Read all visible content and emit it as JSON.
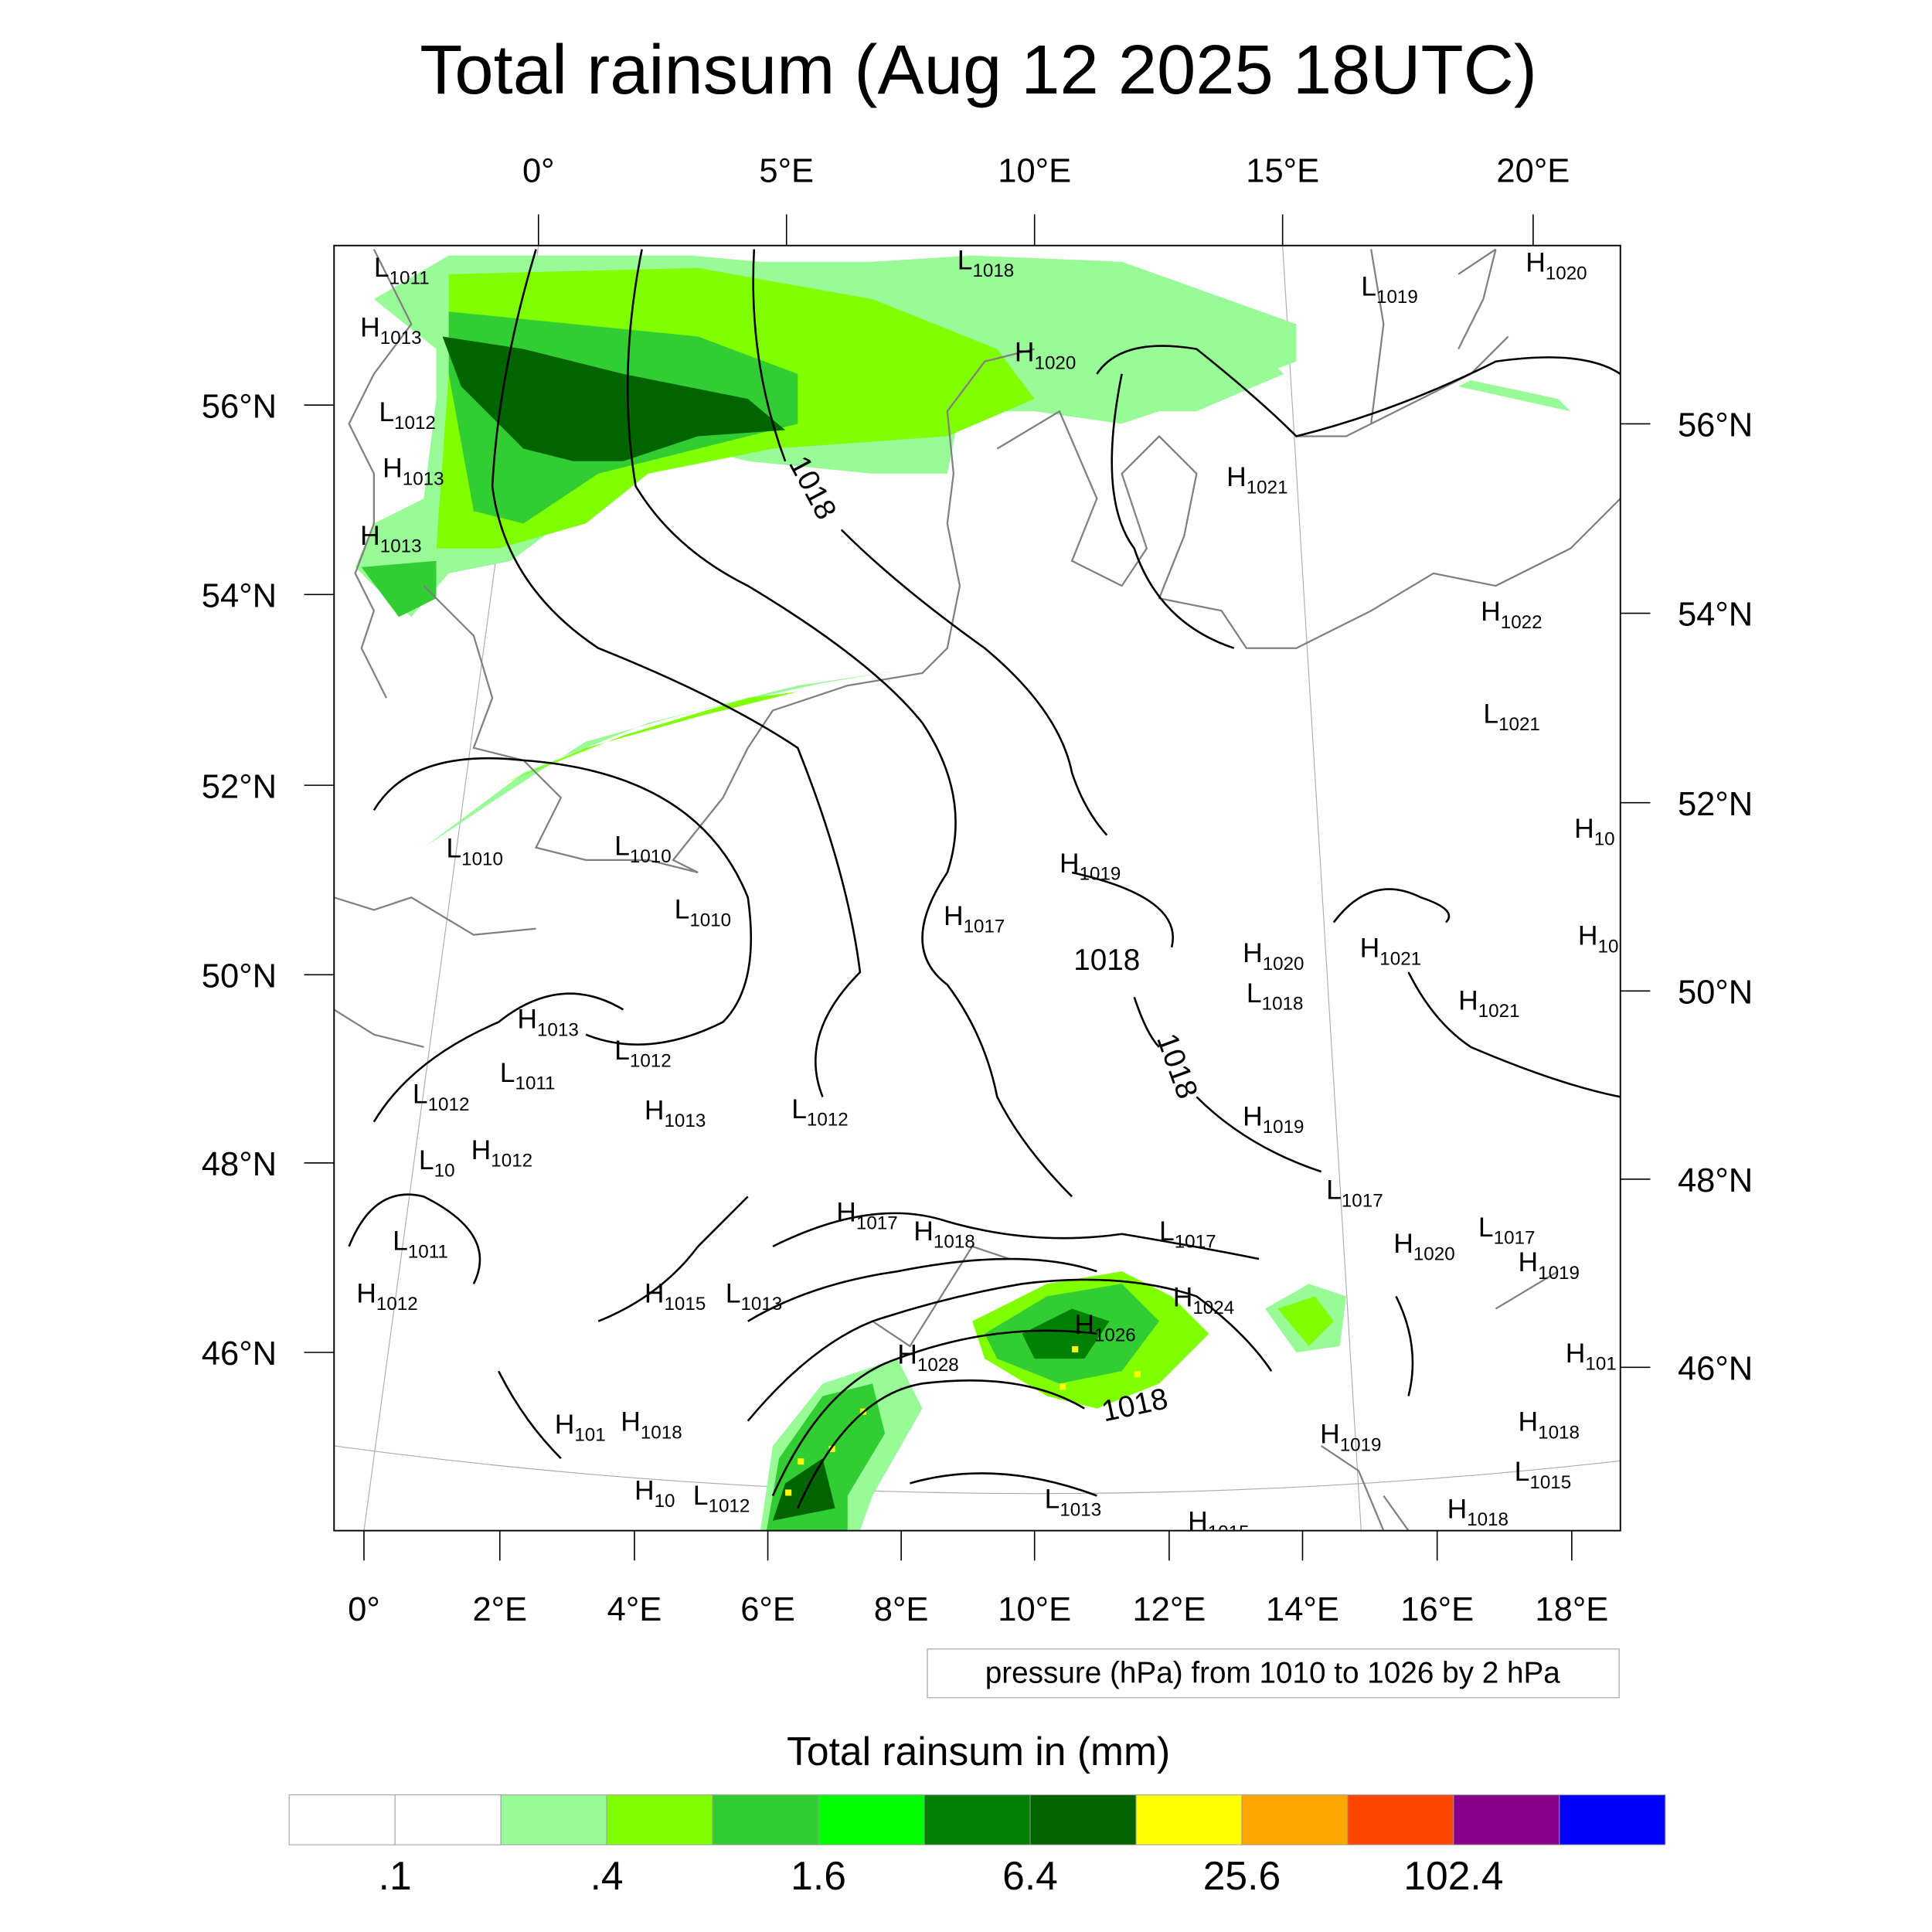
{
  "title": "Total rainsum (Aug 12 2025 18UTC)",
  "axes": {
    "top_lon_labels": [
      "0°",
      "5°E",
      "10°E",
      "15°E",
      "20°E"
    ],
    "bottom_lon_labels": [
      "0°",
      "2°E",
      "4°E",
      "6°E",
      "8°E",
      "10°E",
      "12°E",
      "14°E",
      "16°E",
      "18°E"
    ],
    "left_lat_labels": [
      "56°N",
      "54°N",
      "52°N",
      "50°N",
      "48°N",
      "46°N"
    ],
    "right_lat_labels": [
      "56°N",
      "54°N",
      "52°N",
      "50°N",
      "48°N",
      "46°N"
    ]
  },
  "contour_info": "pressure (hPa) from 1010 to 1026 by 2 hPa",
  "contour_line_labels": [
    "1018",
    "1018",
    "1018",
    "1018"
  ],
  "pressure_centers": [
    {
      "type": "L",
      "value": "1011"
    },
    {
      "type": "H",
      "value": "1013"
    },
    {
      "type": "L",
      "value": "1012"
    },
    {
      "type": "H",
      "value": "1013"
    },
    {
      "type": "H",
      "value": "1013"
    },
    {
      "type": "L",
      "value": "1018"
    },
    {
      "type": "H",
      "value": "1020"
    },
    {
      "type": "L",
      "value": "1019"
    },
    {
      "type": "H",
      "value": "1020"
    },
    {
      "type": "H",
      "value": "1021"
    },
    {
      "type": "H",
      "value": "1022"
    },
    {
      "type": "L",
      "value": "1021"
    },
    {
      "type": "H",
      "value": "10"
    },
    {
      "type": "H",
      "value": "10"
    },
    {
      "type": "L",
      "value": "1010"
    },
    {
      "type": "L",
      "value": "1010"
    },
    {
      "type": "L",
      "value": "1010"
    },
    {
      "type": "H",
      "value": "1019"
    },
    {
      "type": "H",
      "value": "1017"
    },
    {
      "type": "H",
      "value": "1020"
    },
    {
      "type": "L",
      "value": "1018"
    },
    {
      "type": "H",
      "value": "1021"
    },
    {
      "type": "H",
      "value": "1021"
    },
    {
      "type": "H",
      "value": "1013"
    },
    {
      "type": "L",
      "value": "1012"
    },
    {
      "type": "L",
      "value": "1011"
    },
    {
      "type": "L",
      "value": "1012"
    },
    {
      "type": "H",
      "value": "1013"
    },
    {
      "type": "L",
      "value": "1012"
    },
    {
      "type": "H",
      "value": "1019"
    },
    {
      "type": "L",
      "value": "10"
    },
    {
      "type": "H",
      "value": "1012"
    },
    {
      "type": "L",
      "value": "1017"
    },
    {
      "type": "H",
      "value": "1017"
    },
    {
      "type": "H",
      "value": "1018"
    },
    {
      "type": "L",
      "value": "1017"
    },
    {
      "type": "L",
      "value": "1017"
    },
    {
      "type": "H",
      "value": "1020"
    },
    {
      "type": "H",
      "value": "1019"
    },
    {
      "type": "L",
      "value": "1011"
    },
    {
      "type": "H",
      "value": "1012"
    },
    {
      "type": "H",
      "value": "1015"
    },
    {
      "type": "L",
      "value": "1013"
    },
    {
      "type": "H",
      "value": "1024"
    },
    {
      "type": "H",
      "value": "1026"
    },
    {
      "type": "H",
      "value": "101"
    },
    {
      "type": "H",
      "value": "1028"
    },
    {
      "type": "H",
      "value": "101"
    },
    {
      "type": "H",
      "value": "1018"
    },
    {
      "type": "H",
      "value": "1019"
    },
    {
      "type": "H",
      "value": "1018"
    },
    {
      "type": "L",
      "value": "1015"
    },
    {
      "type": "H",
      "value": "10"
    },
    {
      "type": "L",
      "value": "1012"
    },
    {
      "type": "L",
      "value": "1013"
    },
    {
      "type": "H",
      "value": "1018"
    },
    {
      "type": "H",
      "value": "1015"
    }
  ],
  "colorbar": {
    "title": "Total rainsum in (mm)",
    "colors": [
      "#ffffff",
      "#ffffff",
      "#98fb98",
      "#7fff00",
      "#32cd32",
      "#00ff00",
      "#008000",
      "#006400",
      "#ffff00",
      "#ffa500",
      "#ff4500",
      "#8b008b",
      "#0000ff"
    ],
    "tick_labels": [
      ".1",
      ".4",
      "1.6",
      "6.4",
      "25.6",
      "102.4"
    ]
  },
  "rain_colors": {
    "light": "#98fb98",
    "lime": "#7fff00",
    "mid": "#32cd32",
    "bright": "#00ff00",
    "green": "#008000",
    "dark": "#006400",
    "yellow": "#ffff00"
  }
}
